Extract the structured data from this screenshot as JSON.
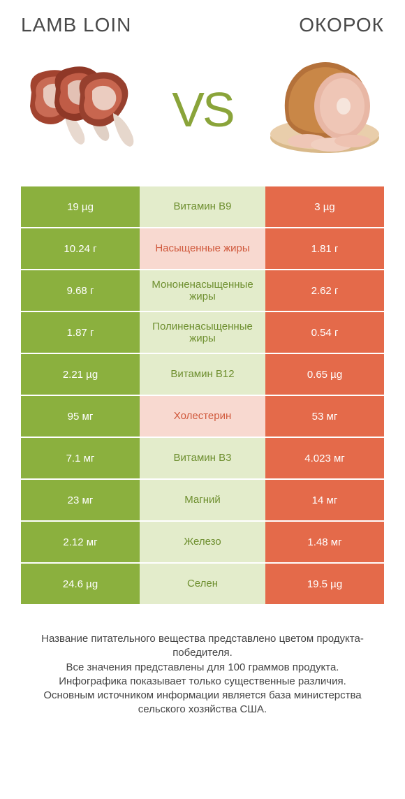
{
  "header": {
    "left_title": "Lamb loin",
    "right_title": "Окорок",
    "vs_text": "VS"
  },
  "colors": {
    "left_solid": "#8bb03e",
    "right_solid": "#e46a4a",
    "mid_green_bg": "#e3eccb",
    "mid_orange_bg": "#f8d9d0",
    "green_text": "#6e8f2f",
    "orange_text": "#d0593c",
    "page_bg": "#ffffff"
  },
  "rows": [
    {
      "left": "19 µg",
      "mid": "Витамин B9",
      "right": "3 µg",
      "winner": "left"
    },
    {
      "left": "10.24 г",
      "mid": "Насыщенные жиры",
      "right": "1.81 г",
      "winner": "right"
    },
    {
      "left": "9.68 г",
      "mid": "Мононенасыщенные жиры",
      "right": "2.62 г",
      "winner": "left"
    },
    {
      "left": "1.87 г",
      "mid": "Полиненасыщенные жиры",
      "right": "0.54 г",
      "winner": "left"
    },
    {
      "left": "2.21 µg",
      "mid": "Витамин B12",
      "right": "0.65 µg",
      "winner": "left"
    },
    {
      "left": "95 мг",
      "mid": "Холестерин",
      "right": "53 мг",
      "winner": "right"
    },
    {
      "left": "7.1 мг",
      "mid": "Витамин B3",
      "right": "4.023 мг",
      "winner": "left"
    },
    {
      "left": "23 мг",
      "mid": "Магний",
      "right": "14 мг",
      "winner": "left"
    },
    {
      "left": "2.12 мг",
      "mid": "Железо",
      "right": "1.48 мг",
      "winner": "left"
    },
    {
      "left": "24.6 µg",
      "mid": "Селен",
      "right": "19.5 µg",
      "winner": "left"
    }
  ],
  "footer": {
    "line1": "Название питательного вещества представлено цветом продукта-победителя.",
    "line2": "Все значения представлены для 100 граммов продукта.",
    "line3": "Инфографика показывает только существенные различия.",
    "line4": "Основным источником информации является база министерства сельского хозяйства США."
  }
}
